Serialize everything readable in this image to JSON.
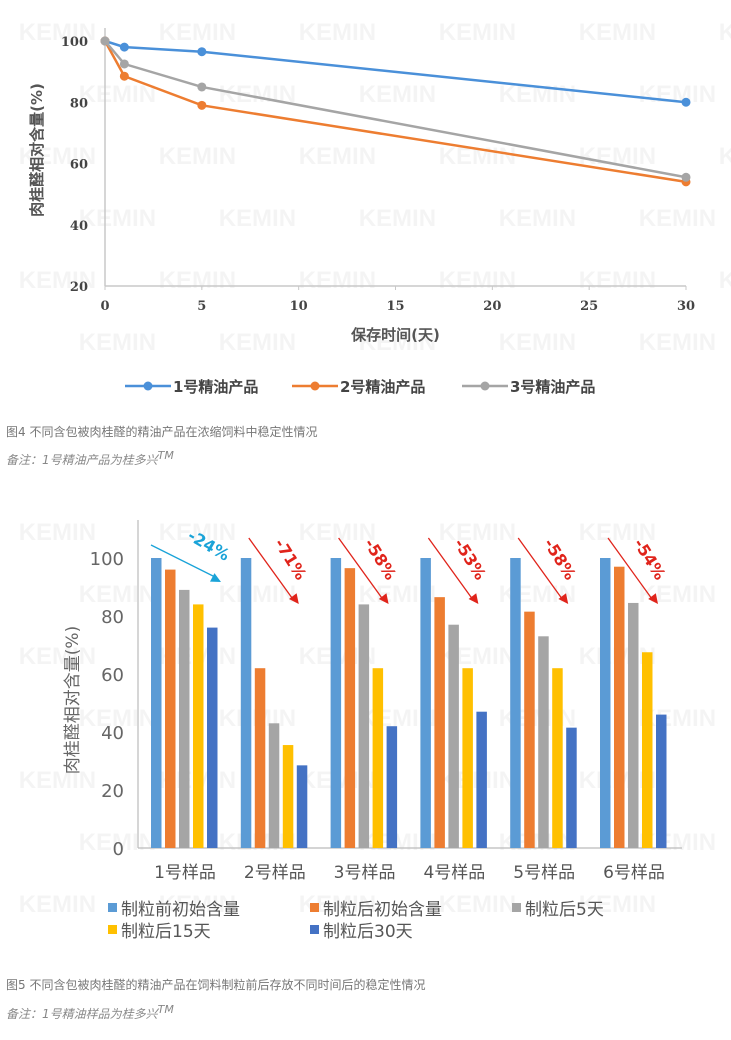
{
  "watermark": "KEMIN",
  "figure4": {
    "caption": "图4 不同含包被肉桂醛的精油产品在浓缩饲料中稳定性情况",
    "note": "备注：1号精油产品为桂多兴",
    "note_sup": "TM"
  },
  "figure5": {
    "caption": "图5 不同含包被肉桂醛的精油产品在饲料制粒前后存放不同时间后的稳定性情况",
    "note": "备注：1号精油样品为桂多兴",
    "note_sup": "TM"
  },
  "chart_data": [
    {
      "type": "line",
      "title": "",
      "xlabel": "保存时间(天)",
      "ylabel": "肉桂醛相对含量(%)",
      "xlim": [
        0,
        30
      ],
      "ylim": [
        20,
        100
      ],
      "xticks": [
        "0",
        "5",
        "10",
        "15",
        "20",
        "25",
        "30"
      ],
      "yticks": [
        "20",
        "40",
        "60",
        "80",
        "100"
      ],
      "legend_position": "bottom",
      "series": [
        {
          "name": "1号精油产品",
          "color": "#4a90d9",
          "x": [
            0,
            1,
            5,
            30
          ],
          "y": [
            100,
            98,
            96.5,
            80
          ]
        },
        {
          "name": "2号精油产品",
          "color": "#ed7d31",
          "x": [
            0,
            1,
            5,
            30
          ],
          "y": [
            100,
            88.5,
            79,
            54
          ]
        },
        {
          "name": "3号精油产品",
          "color": "#a5a5a5",
          "x": [
            0,
            1,
            5,
            30
          ],
          "y": [
            100,
            92.5,
            85,
            55.5
          ]
        }
      ]
    },
    {
      "type": "bar",
      "title": "",
      "xlabel": "",
      "ylabel": "肉桂醛相对含量(%)",
      "ylim": [
        0,
        110
      ],
      "yticks": [
        "0",
        "20",
        "40",
        "60",
        "80",
        "100"
      ],
      "legend_position": "bottom",
      "categories": [
        "1号样品",
        "2号样品",
        "3号样品",
        "4号样品",
        "5号样品",
        "6号样品"
      ],
      "series": [
        {
          "name": "制粒前初始含量",
          "color": "#5b9bd5",
          "values": [
            100,
            100,
            100,
            100,
            100,
            100
          ]
        },
        {
          "name": "制粒后初始含量",
          "color": "#ed7d31",
          "values": [
            96,
            62,
            96.5,
            86.5,
            81.5,
            97
          ]
        },
        {
          "name": "制粒后5天",
          "color": "#a5a5a5",
          "values": [
            89,
            43,
            84,
            77,
            73,
            84.5
          ]
        },
        {
          "name": "制粒后15天",
          "color": "#ffc000",
          "values": [
            84,
            35.5,
            62,
            62,
            62,
            67.5
          ]
        },
        {
          "name": "制粒后30天",
          "color": "#4472c4",
          "values": [
            76,
            28.5,
            42,
            47,
            41.5,
            46
          ]
        }
      ],
      "annotations": [
        {
          "label": "-24%",
          "color": "#1aa3d8"
        },
        {
          "label": "-71%",
          "color": "#e0241b"
        },
        {
          "label": "-58%",
          "color": "#e0241b"
        },
        {
          "label": "-53%",
          "color": "#e0241b"
        },
        {
          "label": "-58%",
          "color": "#e0241b"
        },
        {
          "label": "-54%",
          "color": "#e0241b"
        }
      ]
    }
  ]
}
